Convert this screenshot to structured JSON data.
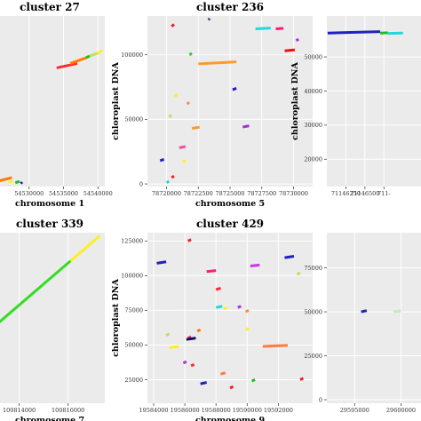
{
  "chart_data": [
    {
      "type": "scatter",
      "title": "cluster 27",
      "xlabel": "chromosome 1",
      "ylabel": "",
      "xlim": [
        54525000,
        54541000
      ],
      "ylim": [
        0,
        115000
      ],
      "xticks": [
        54530000,
        54535000,
        54540000
      ],
      "xtick_labels": [
        "54530000",
        "54535000",
        "54540000"
      ],
      "yticks": [],
      "ytick_labels": [],
      "segments": [
        {
          "x1": 54534000,
          "x2": 54537000,
          "y1": 80000,
          "y2": 83000,
          "color": "#ff2a2a"
        },
        {
          "x1": 54536000,
          "x2": 54538400,
          "y1": 83000,
          "y2": 87000,
          "color": "#ff7b00"
        },
        {
          "x1": 54538300,
          "x2": 54538800,
          "y1": 87000,
          "y2": 88000,
          "color": "#1ebd1e"
        },
        {
          "x1": 54538800,
          "x2": 54540000,
          "y1": 88000,
          "y2": 90000,
          "color": "#b8e35b"
        },
        {
          "x1": 54539900,
          "x2": 54540600,
          "y1": 89500,
          "y2": 92000,
          "color": "#ffee22"
        },
        {
          "x1": 54525000,
          "x2": 54527500,
          "y1": 3000,
          "y2": 6000,
          "color": "#ff7b00"
        },
        {
          "x1": 54528000,
          "x2": 54528600,
          "y1": 2500,
          "y2": 3500,
          "color": "#1ebd1e"
        },
        {
          "x1": 54528800,
          "x2": 54529000,
          "y1": 2000,
          "y2": 3000,
          "color": "#2020c0"
        },
        {
          "x1": 54527000,
          "x2": 54527600,
          "y1": 3000,
          "y2": 3500,
          "color": "#ffee22"
        }
      ]
    },
    {
      "type": "scatter",
      "title": "cluster 236",
      "xlabel": "chromosome 5",
      "ylabel": "chloroplast DNA",
      "xlim": [
        78718500,
        78731500
      ],
      "ylim": [
        -2000,
        130000
      ],
      "xticks": [
        78720000,
        78722500,
        78725000,
        78727500,
        78730000
      ],
      "xtick_labels": [
        "78720000",
        "78722500",
        "78725000",
        "78727500",
        "78730000"
      ],
      "yticks": [
        0,
        50000,
        100000
      ],
      "ytick_labels": [
        "0",
        "50000",
        "100000"
      ],
      "segments": [
        {
          "x1": 78722500,
          "x2": 78725500,
          "y1": 93000,
          "y2": 94500,
          "color": "#ff9a2a"
        },
        {
          "x1": 78729300,
          "x2": 78730100,
          "y1": 103000,
          "y2": 103800,
          "color": "#ee1111"
        },
        {
          "x1": 78727000,
          "x2": 78728200,
          "y1": 120000,
          "y2": 120600,
          "color": "#22d8d8"
        },
        {
          "x1": 78728600,
          "x2": 78729200,
          "y1": 120000,
          "y2": 120500,
          "color": "#ff1a7a"
        },
        {
          "x1": 78730200,
          "x2": 78730400,
          "y1": 111000,
          "y2": 112000,
          "color": "#aa33dd"
        },
        {
          "x1": 78720400,
          "x2": 78720600,
          "y1": 122000,
          "y2": 123500,
          "color": "#ee2222"
        },
        {
          "x1": 78723300,
          "x2": 78723400,
          "y1": 127000,
          "y2": 128000,
          "color": "#333366"
        },
        {
          "x1": 78721800,
          "x2": 78722000,
          "y1": 100000,
          "y2": 101000,
          "color": "#33cc33"
        },
        {
          "x1": 78725200,
          "x2": 78725500,
          "y1": 73000,
          "y2": 74000,
          "color": "#2020c0"
        },
        {
          "x1": 78720600,
          "x2": 78720900,
          "y1": 68000,
          "y2": 69000,
          "color": "#ffee22"
        },
        {
          "x1": 78721600,
          "x2": 78721800,
          "y1": 62000,
          "y2": 63000,
          "color": "#ff8c3a"
        },
        {
          "x1": 78720200,
          "x2": 78720400,
          "y1": 52000,
          "y2": 53000,
          "color": "#b8e35b"
        },
        {
          "x1": 78722000,
          "x2": 78722600,
          "y1": 43000,
          "y2": 44000,
          "color": "#ff9a2a"
        },
        {
          "x1": 78726000,
          "x2": 78726500,
          "y1": 44000,
          "y2": 45000,
          "color": "#9933cc"
        },
        {
          "x1": 78721000,
          "x2": 78721500,
          "y1": 28000,
          "y2": 29000,
          "color": "#ff4a9a"
        },
        {
          "x1": 78719500,
          "x2": 78719800,
          "y1": 18000,
          "y2": 19000,
          "color": "#2020c0"
        },
        {
          "x1": 78721300,
          "x2": 78721500,
          "y1": 17000,
          "y2": 18000,
          "color": "#ffee22"
        },
        {
          "x1": 78720400,
          "x2": 78720600,
          "y1": 5000,
          "y2": 6000,
          "color": "#ee2222"
        },
        {
          "x1": 78720000,
          "x2": 78720200,
          "y1": 1000,
          "y2": 2000,
          "color": "#22d8d8"
        }
      ]
    },
    {
      "type": "scatter",
      "title": "",
      "xlabel": "",
      "ylabel": "chloroplast DNA",
      "xlim": [
        71146000,
        71147400
      ],
      "ylim": [
        12000,
        62000
      ],
      "xticks": [
        71146250,
        71146500,
        71146750
      ],
      "xtick_labels": [
        "71146250",
        "71146500",
        "711-"
      ],
      "yticks": [
        20000,
        30000,
        40000,
        50000
      ],
      "ytick_labels": [
        "20000",
        "30000",
        "40000",
        "50000"
      ],
      "segments": [
        {
          "x1": 71146010,
          "x2": 71146700,
          "y1": 57000,
          "y2": 57400,
          "color": "#2020c0"
        },
        {
          "x1": 71146700,
          "x2": 71146800,
          "y1": 57000,
          "y2": 57100,
          "color": "#1ebd1e"
        },
        {
          "x1": 71146800,
          "x2": 71147000,
          "y1": 56900,
          "y2": 57000,
          "color": "#22d8d8"
        }
      ]
    },
    {
      "type": "scatter",
      "title": "cluster 339",
      "xlabel": "chromosome 7",
      "ylabel": "",
      "xlim": [
        100813000,
        100817500
      ],
      "ylim": [
        0,
        115000
      ],
      "xticks": [
        100814000,
        100816000
      ],
      "xtick_labels": [
        "100814000",
        "100816000"
      ],
      "yticks": [],
      "ytick_labels": [],
      "segments": [
        {
          "x1": 100813000,
          "x2": 100816100,
          "y1": 52000,
          "y2": 96000,
          "color": "#33dd22"
        },
        {
          "x1": 100816100,
          "x2": 100817300,
          "y1": 96000,
          "y2": 113000,
          "color": "#ffee22"
        }
      ]
    },
    {
      "type": "scatter",
      "title": "cluster 429",
      "xlabel": "chromosome 9",
      "ylabel": "chloroplast DNA",
      "xlim": [
        19583600,
        19594200
      ],
      "ylim": [
        8000,
        131000
      ],
      "xticks": [
        19584000,
        19586000,
        19588000,
        19590000,
        19592000
      ],
      "xtick_labels": [
        "19584000",
        "19586000",
        "19588000",
        "19590000",
        "19592000"
      ],
      "yticks": [
        25000,
        50000,
        75000,
        100000,
        125000
      ],
      "ytick_labels": [
        "25000",
        "50000",
        "75000",
        "100000",
        "125000"
      ],
      "segments": [
        {
          "x1": 19584200,
          "x2": 19584800,
          "y1": 109000,
          "y2": 110000,
          "color": "#2020c0"
        },
        {
          "x1": 19586200,
          "x2": 19586400,
          "y1": 125000,
          "y2": 126000,
          "color": "#ee2222"
        },
        {
          "x1": 19587400,
          "x2": 19588000,
          "y1": 103000,
          "y2": 103700,
          "color": "#ee2277"
        },
        {
          "x1": 19590200,
          "x2": 19590800,
          "y1": 107000,
          "y2": 107700,
          "color": "#cc33ee"
        },
        {
          "x1": 19592400,
          "x2": 19593000,
          "y1": 113000,
          "y2": 114000,
          "color": "#2020c0"
        },
        {
          "x1": 19588000,
          "x2": 19588300,
          "y1": 90000,
          "y2": 91000,
          "color": "#ff2a2a"
        },
        {
          "x1": 19593200,
          "x2": 19593400,
          "y1": 101000,
          "y2": 102000,
          "color": "#b8e35b"
        },
        {
          "x1": 19588000,
          "x2": 19588400,
          "y1": 77000,
          "y2": 78000,
          "color": "#22d8d8"
        },
        {
          "x1": 19588500,
          "x2": 19588700,
          "y1": 76000,
          "y2": 77000,
          "color": "#ffee22"
        },
        {
          "x1": 19589400,
          "x2": 19589600,
          "y1": 77000,
          "y2": 78000,
          "color": "#aa33dd"
        },
        {
          "x1": 19589900,
          "x2": 19590100,
          "y1": 74000,
          "y2": 75000,
          "color": "#ff8c3a"
        },
        {
          "x1": 19586800,
          "x2": 19587000,
          "y1": 60000,
          "y2": 61000,
          "color": "#ff7b00"
        },
        {
          "x1": 19589900,
          "x2": 19590100,
          "y1": 61000,
          "y2": 62000,
          "color": "#ffee22"
        },
        {
          "x1": 19584800,
          "x2": 19585000,
          "y1": 57000,
          "y2": 58000,
          "color": "#b8e35b"
        },
        {
          "x1": 19586200,
          "x2": 19586400,
          "y1": 55000,
          "y2": 56000,
          "color": "#ee2277"
        },
        {
          "x1": 19586100,
          "x2": 19586700,
          "y1": 54000,
          "y2": 55000,
          "color": "#101060"
        },
        {
          "x1": 19585000,
          "x2": 19585600,
          "y1": 48000,
          "y2": 49000,
          "color": "#ffee22"
        },
        {
          "x1": 19591000,
          "x2": 19592600,
          "y1": 49000,
          "y2": 49700,
          "color": "#ff7b3a"
        },
        {
          "x1": 19585900,
          "x2": 19586100,
          "y1": 37000,
          "y2": 38000,
          "color": "#aa33dd"
        },
        {
          "x1": 19586400,
          "x2": 19586600,
          "y1": 35000,
          "y2": 36000,
          "color": "#ff2a2a"
        },
        {
          "x1": 19588300,
          "x2": 19588600,
          "y1": 29000,
          "y2": 30000,
          "color": "#ff7b3a"
        },
        {
          "x1": 19587000,
          "x2": 19587400,
          "y1": 22000,
          "y2": 23000,
          "color": "#2020c0"
        },
        {
          "x1": 19590300,
          "x2": 19590500,
          "y1": 24000,
          "y2": 25000,
          "color": "#1ebd1e"
        },
        {
          "x1": 19588900,
          "x2": 19589100,
          "y1": 19000,
          "y2": 20000,
          "color": "#ee2222"
        },
        {
          "x1": 19593400,
          "x2": 19593600,
          "y1": 25000,
          "y2": 26000,
          "color": "#ee2222"
        }
      ]
    },
    {
      "type": "scatter",
      "title": "",
      "xlabel": "",
      "ylabel": "",
      "xlim": [
        29592000,
        29603500
      ],
      "ylim": [
        -2000,
        95000
      ],
      "xticks": [
        29595000,
        29600000
      ],
      "xtick_labels": [
        "29595000",
        "29600000"
      ],
      "yticks": [
        0,
        25000,
        50000,
        75000
      ],
      "ytick_labels": [
        "0",
        "25000",
        "50000",
        "75000"
      ],
      "segments": [
        {
          "x1": 29595700,
          "x2": 29596300,
          "y1": 50000,
          "y2": 50700,
          "color": "#2020c0"
        },
        {
          "x1": 29599200,
          "x2": 29600000,
          "y1": 50000,
          "y2": 50600,
          "color": "#b8f0b8"
        }
      ]
    }
  ]
}
